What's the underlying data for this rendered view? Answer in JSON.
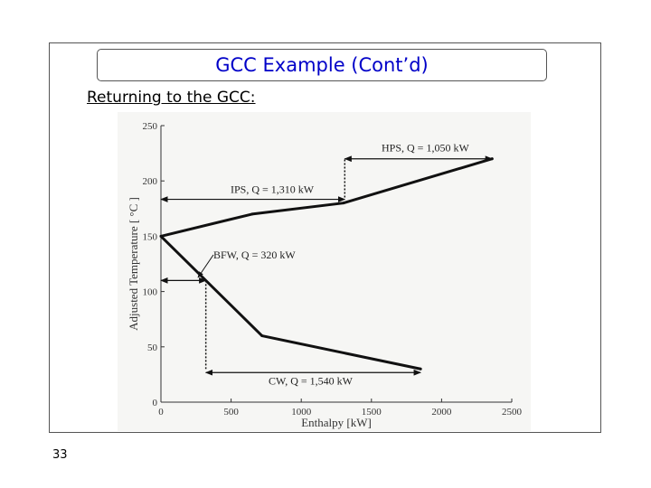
{
  "slide": {
    "title": "GCC Example (Cont’d)",
    "subtitle": "Returning to the GCC:",
    "page_number": "33"
  },
  "chart_data": {
    "type": "line",
    "xlabel": "Enthalpy [kW]",
    "ylabel": "Adjusted Temperature [ °C ]",
    "xlim": [
      0,
      2500
    ],
    "ylim": [
      0,
      250
    ],
    "x_ticks": [
      "0",
      "500",
      "1000",
      "1500",
      "2000",
      "2500"
    ],
    "y_ticks": [
      "0",
      "50",
      "100",
      "150",
      "200",
      "250"
    ],
    "series": [
      {
        "points": [
          {
            "x": 2360,
            "y": 220
          },
          {
            "x": 1300,
            "y": 180
          },
          {
            "x": 650,
            "y": 170
          },
          {
            "x": 0,
            "y": 150
          },
          {
            "x": 720,
            "y": 60
          },
          {
            "x": 1850,
            "y": 30
          }
        ]
      }
    ],
    "annotations": [
      {
        "text": "HPS, Q = 1,050 kW",
        "x_from": 1310,
        "x_to": 2360,
        "y": 220
      },
      {
        "text": "IPS, Q = 1,310 kW",
        "x_from": 0,
        "x_to": 1310,
        "y": 185
      },
      {
        "text": "BFW, Q = 320 kW",
        "x_from": 0,
        "x_to": 320,
        "y": 110
      },
      {
        "text": "CW, Q = 1,540 kW",
        "x_from": 320,
        "x_to": 1850,
        "y": 30
      }
    ],
    "grid": false
  }
}
